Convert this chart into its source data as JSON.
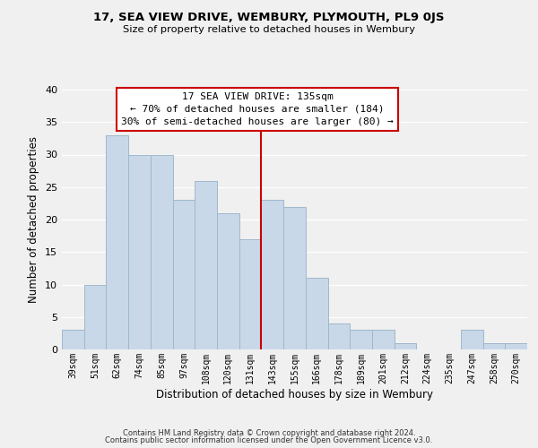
{
  "title": "17, SEA VIEW DRIVE, WEMBURY, PLYMOUTH, PL9 0JS",
  "subtitle": "Size of property relative to detached houses in Wembury",
  "xlabel": "Distribution of detached houses by size in Wembury",
  "ylabel": "Number of detached properties",
  "footer_lines": [
    "Contains HM Land Registry data © Crown copyright and database right 2024.",
    "Contains public sector information licensed under the Open Government Licence v3.0."
  ],
  "bar_labels": [
    "39sqm",
    "51sqm",
    "62sqm",
    "74sqm",
    "85sqm",
    "97sqm",
    "108sqm",
    "120sqm",
    "131sqm",
    "143sqm",
    "155sqm",
    "166sqm",
    "178sqm",
    "189sqm",
    "201sqm",
    "212sqm",
    "224sqm",
    "235sqm",
    "247sqm",
    "258sqm",
    "270sqm"
  ],
  "bar_values": [
    3,
    10,
    33,
    30,
    30,
    23,
    26,
    21,
    17,
    23,
    22,
    11,
    4,
    3,
    3,
    1,
    0,
    0,
    3,
    1,
    1
  ],
  "bar_color": "#c8d8e8",
  "bar_edge_color": "#a0b8cc",
  "vline_x_index": 8,
  "vline_color": "#cc0000",
  "annotation_title": "17 SEA VIEW DRIVE: 135sqm",
  "annotation_line1": "← 70% of detached houses are smaller (184)",
  "annotation_line2": "30% of semi-detached houses are larger (80) →",
  "annotation_box_color": "#ffffff",
  "annotation_box_edge": "#cc0000",
  "ylim": [
    0,
    40
  ],
  "yticks": [
    0,
    5,
    10,
    15,
    20,
    25,
    30,
    35,
    40
  ],
  "background_color": "#f0f0f0",
  "grid_color": "#ffffff"
}
